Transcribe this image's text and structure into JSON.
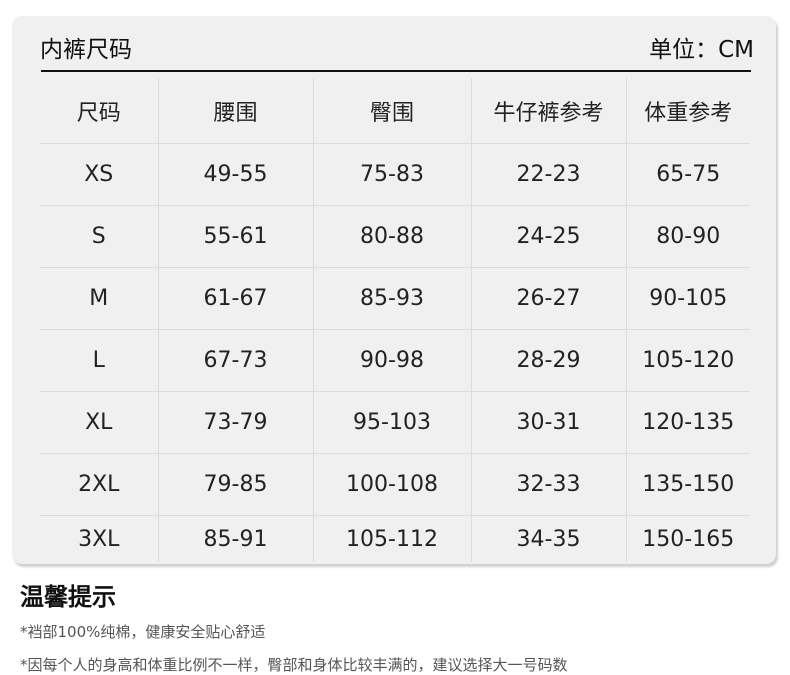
{
  "chart": {
    "title": "内裤尺码",
    "unit": "单位：CM",
    "headers": [
      "尺码",
      "腰围",
      "臀围",
      "牛仔裤参考",
      "体重参考"
    ],
    "rows": [
      [
        "XS",
        "49-55",
        "75-83",
        "22-23",
        "65-75"
      ],
      [
        "S",
        "55-61",
        "80-88",
        "24-25",
        "80-90"
      ],
      [
        "M",
        "61-67",
        "85-93",
        "26-27",
        "90-105"
      ],
      [
        "L",
        "67-73",
        "90-98",
        "28-29",
        "105-120"
      ],
      [
        "XL",
        "73-79",
        "95-103",
        "30-31",
        "120-135"
      ],
      [
        "2XL",
        "79-85",
        "100-108",
        "32-33",
        "135-150"
      ],
      [
        "3XL",
        "85-91",
        "105-112",
        "34-35",
        "150-165"
      ]
    ]
  },
  "tips": {
    "title": "温馨提示",
    "items": [
      "*裆部100%纯棉，健康安全贴心舒适",
      "*因每个人的身高和体重比例不一样，臀部和身体比较丰满的，建议选择大一号码数"
    ]
  }
}
